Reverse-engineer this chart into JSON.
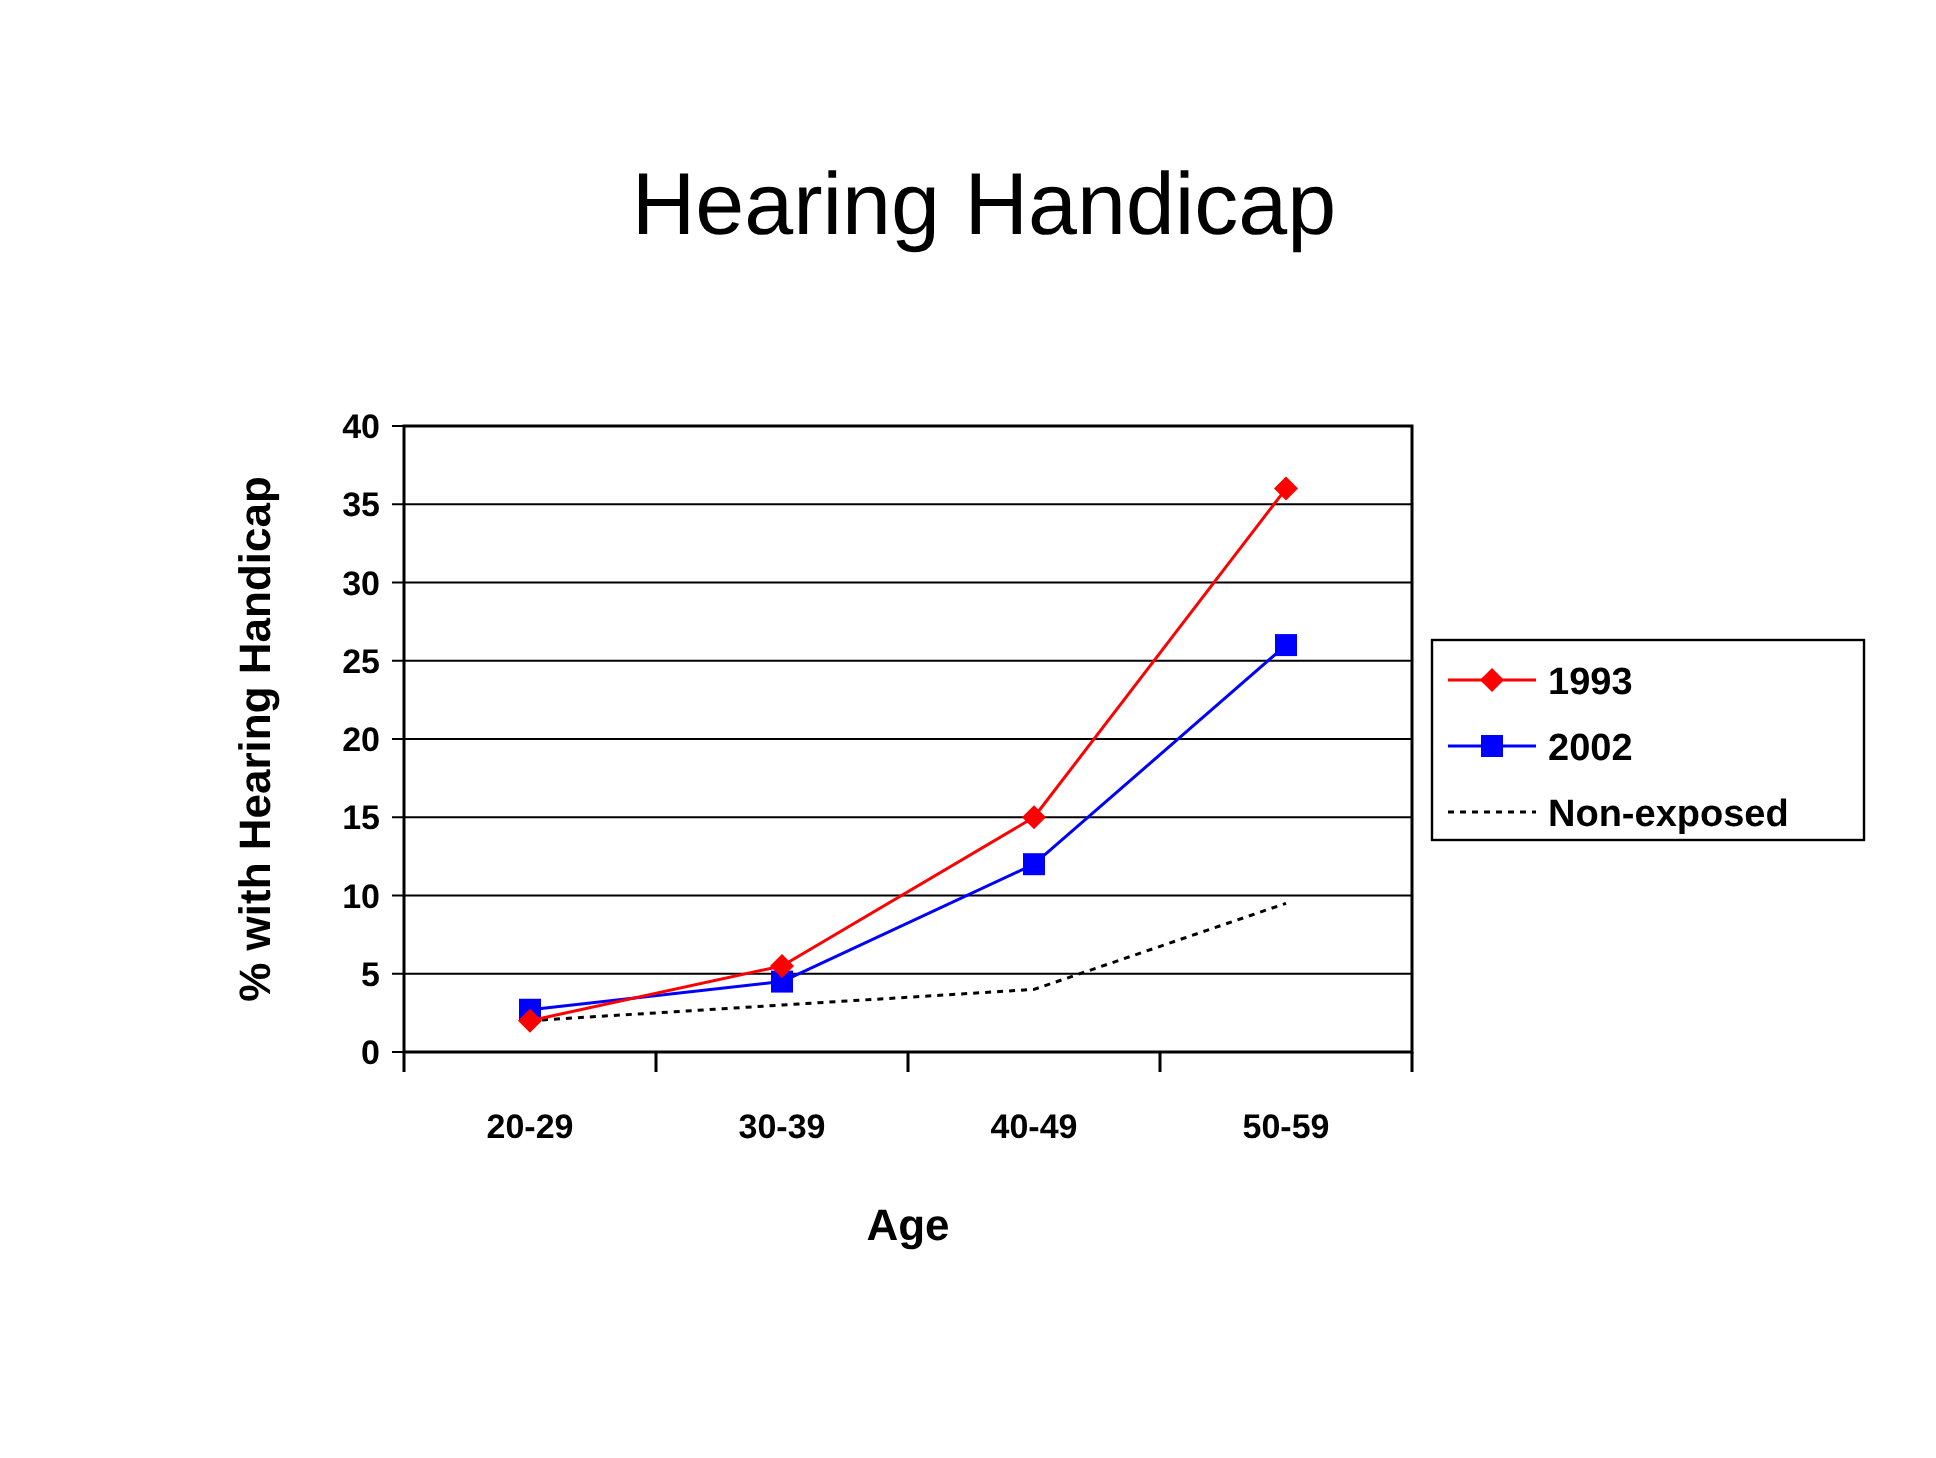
{
  "chart_data": {
    "type": "line",
    "title": "Hearing Handicap",
    "xlabel": "Age",
    "ylabel": "% with Hearing Handicap",
    "categories": [
      "20-29",
      "30-39",
      "40-49",
      "50-59"
    ],
    "series": [
      {
        "name": "1993",
        "color": "#ff0000",
        "values": [
          2,
          5.5,
          15,
          36
        ],
        "marker": "diamond",
        "line_style": "solid"
      },
      {
        "name": "2002",
        "color": "#0000ff",
        "values": [
          2.7,
          4.5,
          12,
          26
        ],
        "marker": "square",
        "line_style": "solid"
      },
      {
        "name": "Non-exposed",
        "color": "#000000",
        "values": [
          2,
          3,
          4,
          9.5
        ],
        "marker": "none",
        "line_style": "dotted"
      }
    ],
    "ylim": [
      0,
      40
    ],
    "yticks": [
      0,
      5,
      10,
      15,
      20,
      25,
      30,
      35,
      40
    ],
    "grid": "y",
    "legend": "right"
  }
}
